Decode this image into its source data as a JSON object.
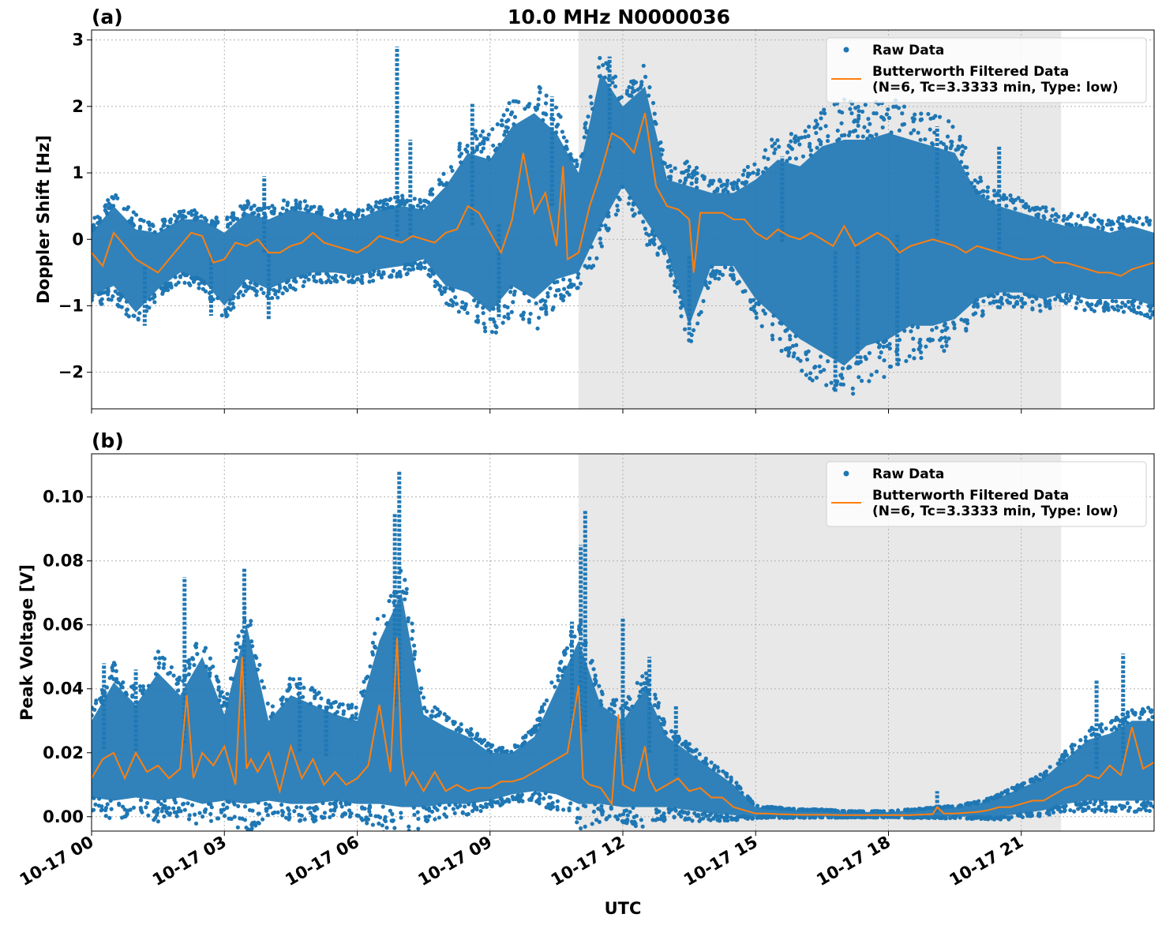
{
  "title": "10.0 MHz N0000036",
  "xlabel": "UTC",
  "colors": {
    "raw": "#1f77b4",
    "filtered": "#ff7f0e",
    "shade": "#e8e8e8",
    "grid": "#b0b0b0"
  },
  "legend": {
    "raw_label": "Raw Data",
    "filtered_label_line1": "Butterworth Filtered Data",
    "filtered_label_line2": "(N=6, Tc=3.3333 min, Type: low)"
  },
  "x_ticks": [
    {
      "label": "10-17 00",
      "hour": 0
    },
    {
      "label": "10-17 03",
      "hour": 3
    },
    {
      "label": "10-17 06",
      "hour": 6
    },
    {
      "label": "10-17 09",
      "hour": 9
    },
    {
      "label": "10-17 12",
      "hour": 12
    },
    {
      "label": "10-17 15",
      "hour": 15
    },
    {
      "label": "10-17 18",
      "hour": 18
    },
    {
      "label": "10-17 21",
      "hour": 21
    }
  ],
  "chart_data": [
    {
      "type": "scatter",
      "panel_label": "(a)",
      "ylabel": "Doppler Shift [Hz]",
      "xlim_hours": [
        0,
        24
      ],
      "ylim": [
        -2.55,
        3.15
      ],
      "shaded_hours": [
        11.0,
        21.9
      ],
      "y_ticks": [
        {
          "label": "−2",
          "value": -2
        },
        {
          "label": "−1",
          "value": -1
        },
        {
          "label": "0",
          "value": 0
        },
        {
          "label": "1",
          "value": 1
        },
        {
          "label": "2",
          "value": 2
        },
        {
          "label": "3",
          "value": 3
        }
      ],
      "series": [
        {
          "name": "Raw Data",
          "kind": "scatter-envelope",
          "x": [
            0,
            0.5,
            1,
            1.5,
            2,
            2.5,
            3,
            3.5,
            4,
            4.5,
            5,
            5.5,
            6,
            6.5,
            7,
            7.5,
            8,
            8.5,
            9,
            9.5,
            10,
            10.5,
            11,
            11.5,
            12,
            12.5,
            13,
            13.5,
            14,
            14.5,
            15,
            15.5,
            16,
            16.5,
            17,
            17.5,
            18,
            18.5,
            19,
            19.5,
            20,
            20.5,
            21,
            21.5,
            22,
            22.5,
            23,
            23.5,
            24
          ],
          "upper": [
            0.1,
            0.5,
            0.15,
            0.1,
            0.3,
            0.3,
            0.1,
            0.4,
            0.3,
            0.45,
            0.4,
            0.3,
            0.3,
            0.45,
            0.5,
            0.45,
            0.8,
            1.3,
            1.2,
            1.7,
            1.9,
            1.6,
            1.0,
            2.5,
            2.0,
            2.3,
            0.9,
            0.8,
            0.7,
            0.7,
            0.9,
            1.2,
            1.1,
            1.4,
            1.5,
            1.5,
            1.6,
            1.5,
            1.4,
            1.3,
            0.7,
            0.5,
            0.4,
            0.3,
            0.2,
            0.2,
            0.1,
            0.2,
            0.1
          ],
          "lower": [
            -0.85,
            -0.7,
            -1.1,
            -0.75,
            -0.5,
            -0.6,
            -1.0,
            -0.6,
            -0.75,
            -0.6,
            -0.5,
            -0.5,
            -0.55,
            -0.45,
            -0.4,
            -0.3,
            -0.7,
            -0.8,
            -1.1,
            -0.7,
            -0.9,
            -0.6,
            -0.5,
            0.2,
            0.8,
            0.3,
            -0.2,
            -1.3,
            -0.4,
            -0.4,
            -0.9,
            -1.2,
            -1.5,
            -1.7,
            -1.9,
            -1.6,
            -1.5,
            -1.3,
            -1.3,
            -1.2,
            -0.9,
            -0.8,
            -0.8,
            -0.9,
            -0.8,
            -0.9,
            -0.9,
            -0.9,
            -1.0
          ],
          "spikes": [
            [
              6.9,
              2.9
            ],
            [
              11.7,
              2.75
            ],
            [
              7.2,
              1.5
            ],
            [
              3.9,
              0.95
            ],
            [
              1.2,
              -1.3
            ],
            [
              2.7,
              -1.15
            ],
            [
              4.0,
              -1.2
            ],
            [
              9.2,
              -1.2
            ],
            [
              13.5,
              -1.45
            ],
            [
              16.8,
              -2.3
            ],
            [
              17.3,
              -1.85
            ],
            [
              18.2,
              -1.9
            ],
            [
              15.6,
              1.25
            ],
            [
              19.1,
              1.7
            ],
            [
              20.5,
              1.4
            ],
            [
              8.6,
              2.05
            ],
            [
              10.4,
              2.15
            ]
          ]
        },
        {
          "name": "Butterworth Filtered Data",
          "kind": "line",
          "x": [
            0,
            0.25,
            0.5,
            0.75,
            1,
            1.25,
            1.5,
            1.75,
            2,
            2.25,
            2.5,
            2.75,
            3,
            3.25,
            3.5,
            3.75,
            4,
            4.25,
            4.5,
            4.75,
            5,
            5.25,
            5.5,
            5.75,
            6,
            6.25,
            6.5,
            6.75,
            7,
            7.25,
            7.5,
            7.75,
            8,
            8.25,
            8.5,
            8.75,
            9,
            9.25,
            9.5,
            9.75,
            10,
            10.25,
            10.5,
            10.65,
            10.75,
            11,
            11.25,
            11.5,
            11.75,
            12,
            12.25,
            12.5,
            12.75,
            13,
            13.25,
            13.5,
            13.6,
            13.75,
            14,
            14.25,
            14.5,
            14.75,
            15,
            15.25,
            15.5,
            15.75,
            16,
            16.25,
            16.5,
            16.75,
            17,
            17.25,
            17.5,
            17.75,
            18,
            18.25,
            18.5,
            18.75,
            19,
            19.25,
            19.5,
            19.75,
            20,
            20.25,
            20.5,
            20.75,
            21,
            21.25,
            21.5,
            21.75,
            22,
            22.25,
            22.5,
            22.75,
            23,
            23.25,
            23.5,
            23.75,
            24
          ],
          "y": [
            -0.2,
            -0.4,
            0.1,
            -0.1,
            -0.3,
            -0.4,
            -0.5,
            -0.3,
            -0.1,
            0.1,
            0.05,
            -0.35,
            -0.3,
            -0.05,
            -0.1,
            0.0,
            -0.2,
            -0.2,
            -0.1,
            -0.05,
            0.1,
            -0.05,
            -0.1,
            -0.15,
            -0.2,
            -0.1,
            0.05,
            0.0,
            -0.05,
            0.05,
            0.0,
            -0.05,
            0.1,
            0.15,
            0.5,
            0.4,
            0.1,
            -0.2,
            0.3,
            1.3,
            0.4,
            0.7,
            -0.1,
            1.1,
            -0.3,
            -0.2,
            0.5,
            1.0,
            1.6,
            1.5,
            1.3,
            1.9,
            0.8,
            0.5,
            0.45,
            0.3,
            -0.5,
            0.4,
            0.4,
            0.4,
            0.3,
            0.3,
            0.1,
            0.0,
            0.15,
            0.05,
            0.0,
            0.1,
            0.0,
            -0.1,
            0.2,
            -0.1,
            0.0,
            0.1,
            0.0,
            -0.2,
            -0.1,
            -0.05,
            0.0,
            -0.05,
            -0.1,
            -0.2,
            -0.1,
            -0.15,
            -0.2,
            -0.25,
            -0.3,
            -0.3,
            -0.25,
            -0.35,
            -0.35,
            -0.4,
            -0.45,
            -0.5,
            -0.5,
            -0.55,
            -0.45,
            -0.4,
            -0.35
          ]
        }
      ]
    },
    {
      "type": "scatter",
      "panel_label": "(b)",
      "ylabel": "Peak Voltage [V]",
      "xlim_hours": [
        0,
        24
      ],
      "ylim": [
        -0.0045,
        0.1135
      ],
      "shaded_hours": [
        11.0,
        21.9
      ],
      "y_ticks": [
        {
          "label": "0.00",
          "value": 0.0
        },
        {
          "label": "0.02",
          "value": 0.02
        },
        {
          "label": "0.04",
          "value": 0.04
        },
        {
          "label": "0.06",
          "value": 0.06
        },
        {
          "label": "0.08",
          "value": 0.08
        },
        {
          "label": "0.10",
          "value": 0.1
        }
      ],
      "series": [
        {
          "name": "Raw Data",
          "kind": "scatter-envelope",
          "x": [
            0,
            0.5,
            1,
            1.5,
            2,
            2.5,
            3,
            3.5,
            4,
            4.5,
            5,
            5.5,
            6,
            6.5,
            7,
            7.5,
            8,
            8.5,
            9,
            9.5,
            10,
            10.5,
            11,
            11.5,
            12,
            12.5,
            13,
            13.5,
            14,
            14.5,
            15,
            15.5,
            16,
            16.5,
            17,
            17.5,
            18,
            18.5,
            19,
            19.5,
            20,
            20.5,
            21,
            21.5,
            22,
            22.5,
            23,
            23.5,
            24
          ],
          "upper": [
            0.03,
            0.042,
            0.035,
            0.045,
            0.038,
            0.05,
            0.032,
            0.06,
            0.03,
            0.038,
            0.035,
            0.032,
            0.03,
            0.055,
            0.07,
            0.032,
            0.028,
            0.025,
            0.02,
            0.02,
            0.025,
            0.04,
            0.055,
            0.035,
            0.03,
            0.04,
            0.025,
            0.02,
            0.015,
            0.01,
            0.003,
            0.0025,
            0.002,
            0.002,
            0.0015,
            0.0015,
            0.0015,
            0.002,
            0.0025,
            0.003,
            0.004,
            0.006,
            0.009,
            0.012,
            0.018,
            0.024,
            0.026,
            0.03,
            0.03
          ],
          "lower": [
            0.006,
            0.005,
            0.006,
            0.005,
            0.006,
            0.004,
            0.005,
            0.004,
            0.005,
            0.004,
            0.004,
            0.005,
            0.004,
            0.004,
            0.003,
            0.003,
            0.004,
            0.004,
            0.005,
            0.007,
            0.008,
            0.007,
            0.004,
            0.004,
            0.003,
            0.003,
            0.003,
            0.002,
            0.001,
            0.0005,
            0.0,
            0.0,
            0.0,
            0.0,
            0.0,
            0.0,
            0.0,
            0.0,
            0.0,
            0.0,
            0.0,
            0.0,
            0.001,
            0.002,
            0.004,
            0.005,
            0.005,
            0.005,
            0.005
          ],
          "spikes": [
            [
              0.28,
              0.048
            ],
            [
              2.1,
              0.075
            ],
            [
              3.45,
              0.078
            ],
            [
              6.95,
              0.108
            ],
            [
              6.85,
              0.095
            ],
            [
              11.15,
              0.096
            ],
            [
              11.05,
              0.085
            ],
            [
              12.0,
              0.062
            ],
            [
              12.6,
              0.05
            ],
            [
              10.85,
              0.061
            ],
            [
              13.2,
              0.035
            ],
            [
              19.1,
              0.008
            ],
            [
              23.3,
              0.051
            ],
            [
              22.7,
              0.043
            ],
            [
              4.7,
              0.044
            ],
            [
              5.3,
              0.035
            ],
            [
              1.0,
              0.046
            ]
          ]
        },
        {
          "name": "Butterworth Filtered Data",
          "kind": "line",
          "x": [
            0,
            0.25,
            0.5,
            0.75,
            1,
            1.25,
            1.5,
            1.75,
            2,
            2.15,
            2.3,
            2.5,
            2.75,
            3,
            3.25,
            3.4,
            3.5,
            3.6,
            3.75,
            4,
            4.25,
            4.5,
            4.75,
            5,
            5.25,
            5.5,
            5.75,
            6,
            6.25,
            6.5,
            6.75,
            6.9,
            7.0,
            7.1,
            7.25,
            7.5,
            7.75,
            8,
            8.25,
            8.5,
            8.75,
            9,
            9.25,
            9.5,
            9.75,
            10,
            10.25,
            10.5,
            10.75,
            11,
            11.1,
            11.25,
            11.5,
            11.75,
            11.9,
            12,
            12.25,
            12.5,
            12.6,
            12.75,
            13,
            13.25,
            13.5,
            13.75,
            14,
            14.25,
            14.5,
            14.75,
            15,
            15.25,
            15.5,
            16,
            16.5,
            17,
            17.5,
            18,
            18.5,
            19,
            19.1,
            19.25,
            19.5,
            20,
            20.25,
            20.5,
            20.75,
            21,
            21.25,
            21.5,
            21.75,
            22,
            22.25,
            22.5,
            22.75,
            23,
            23.25,
            23.5,
            23.75,
            24
          ],
          "y": [
            0.012,
            0.018,
            0.02,
            0.012,
            0.02,
            0.014,
            0.016,
            0.012,
            0.015,
            0.038,
            0.012,
            0.02,
            0.016,
            0.022,
            0.01,
            0.05,
            0.015,
            0.018,
            0.014,
            0.02,
            0.008,
            0.022,
            0.012,
            0.018,
            0.01,
            0.014,
            0.01,
            0.012,
            0.016,
            0.035,
            0.014,
            0.056,
            0.02,
            0.01,
            0.014,
            0.008,
            0.014,
            0.008,
            0.01,
            0.008,
            0.009,
            0.009,
            0.011,
            0.011,
            0.012,
            0.014,
            0.016,
            0.018,
            0.02,
            0.041,
            0.012,
            0.01,
            0.009,
            0.004,
            0.032,
            0.01,
            0.008,
            0.022,
            0.012,
            0.008,
            0.01,
            0.012,
            0.008,
            0.009,
            0.006,
            0.006,
            0.003,
            0.002,
            0.001,
            0.001,
            0.0008,
            0.0006,
            0.0006,
            0.0005,
            0.0005,
            0.0005,
            0.0005,
            0.0008,
            0.003,
            0.001,
            0.001,
            0.0015,
            0.002,
            0.003,
            0.003,
            0.004,
            0.005,
            0.005,
            0.007,
            0.009,
            0.01,
            0.013,
            0.012,
            0.016,
            0.013,
            0.028,
            0.015,
            0.017
          ]
        }
      ]
    }
  ]
}
